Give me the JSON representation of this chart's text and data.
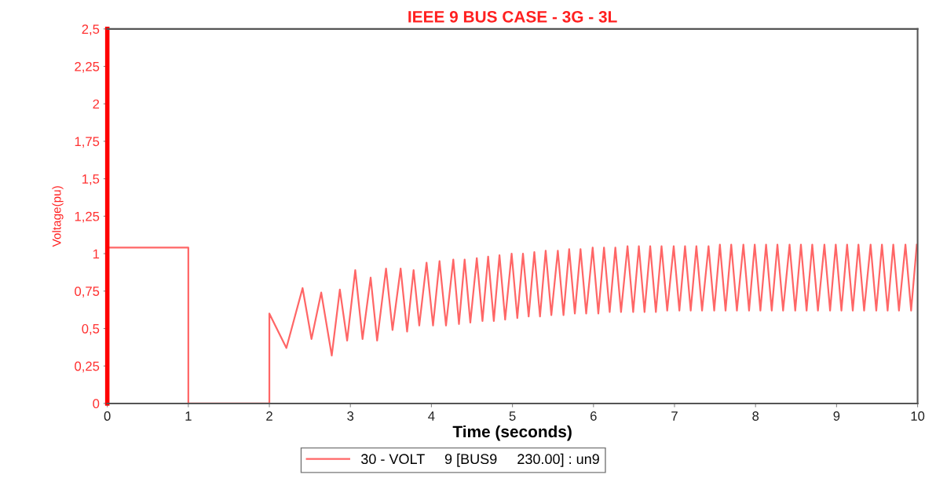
{
  "chart_data": {
    "type": "line",
    "title": "IEEE 9 BUS CASE - 3G - 3L",
    "xlabel": "Time (seconds)",
    "ylabel": "Voltage(pu)",
    "xlim": [
      0,
      10
    ],
    "xticks": [
      0,
      1,
      2,
      3,
      4,
      5,
      6,
      7,
      8,
      9,
      10
    ],
    "ylim": [
      0,
      2.5
    ],
    "yticks": [
      {
        "value": 0,
        "label": "0"
      },
      {
        "value": 0.25,
        "label": "0,25"
      },
      {
        "value": 0.5,
        "label": "0,5"
      },
      {
        "value": 0.75,
        "label": "0,75"
      },
      {
        "value": 1,
        "label": "1"
      },
      {
        "value": 1.25,
        "label": "1,25"
      },
      {
        "value": 1.5,
        "label": "1,5"
      },
      {
        "value": 1.75,
        "label": "1,75"
      },
      {
        "value": 2,
        "label": "2"
      },
      {
        "value": 2.25,
        "label": "2,25"
      },
      {
        "value": 2.5,
        "label": "2,5"
      }
    ],
    "grid": false,
    "legend": "bottom",
    "marker": "none",
    "line_style": "solid",
    "series": [
      {
        "name": "30 - VOLT     9 [BUS9     230.00] : un9",
        "color": "#ff6666",
        "x": [
          0,
          1,
          1,
          2,
          2,
          2.21,
          2.41,
          2.52,
          2.64,
          2.77,
          2.87,
          2.96,
          3.06,
          3.15,
          3.25,
          3.33,
          3.44,
          3.52,
          3.62,
          3.7,
          3.78,
          3.85,
          3.94,
          4.02,
          4.1,
          4.18,
          4.27,
          4.34,
          4.41,
          4.48,
          4.56,
          4.63,
          4.7,
          4.77,
          4.84,
          4.91,
          4.99,
          5.06,
          5.13,
          5.2,
          5.27,
          5.34,
          5.41,
          5.48,
          5.56,
          5.63,
          5.7,
          5.77,
          5.84,
          5.91,
          5.99,
          6.06,
          6.13,
          6.2,
          6.27,
          6.34,
          6.42,
          6.49,
          6.56,
          6.63,
          6.7,
          6.77,
          6.84,
          6.91,
          6.99,
          7.06,
          7.13,
          7.2,
          7.27,
          7.34,
          7.42,
          7.49,
          7.56,
          7.63,
          7.7,
          7.77,
          7.85,
          7.92,
          7.99,
          8.06,
          8.13,
          8.2,
          8.27,
          8.34,
          8.42,
          8.49,
          8.56,
          8.63,
          8.7,
          8.77,
          8.85,
          8.92,
          8.99,
          9.06,
          9.13,
          9.2,
          9.27,
          9.34,
          9.42,
          9.49,
          9.56,
          9.63,
          9.7,
          9.77,
          9.85,
          9.92,
          9.99
        ],
        "values": [
          1.04,
          1.04,
          0,
          0,
          0.6,
          0.37,
          0.77,
          0.43,
          0.74,
          0.32,
          0.76,
          0.42,
          0.89,
          0.43,
          0.84,
          0.42,
          0.9,
          0.49,
          0.9,
          0.48,
          0.89,
          0.52,
          0.94,
          0.52,
          0.95,
          0.52,
          0.96,
          0.53,
          0.96,
          0.54,
          0.97,
          0.55,
          0.98,
          0.55,
          0.99,
          0.56,
          1.0,
          0.57,
          1.0,
          0.58,
          1.01,
          0.58,
          1.02,
          0.59,
          1.02,
          0.59,
          1.03,
          0.6,
          1.03,
          0.6,
          1.04,
          0.6,
          1.04,
          0.61,
          1.04,
          0.61,
          1.05,
          0.61,
          1.05,
          0.61,
          1.05,
          0.61,
          1.05,
          0.62,
          1.05,
          0.62,
          1.05,
          0.62,
          1.05,
          0.62,
          1.05,
          0.62,
          1.06,
          0.62,
          1.06,
          0.62,
          1.06,
          0.62,
          1.06,
          0.62,
          1.06,
          0.62,
          1.06,
          0.62,
          1.06,
          0.62,
          1.06,
          0.62,
          1.06,
          0.62,
          1.06,
          0.62,
          1.06,
          0.62,
          1.06,
          0.62,
          1.06,
          0.62,
          1.06,
          0.62,
          1.06,
          0.62,
          1.06,
          0.62,
          1.06,
          0.62,
          1.06
        ]
      }
    ]
  }
}
